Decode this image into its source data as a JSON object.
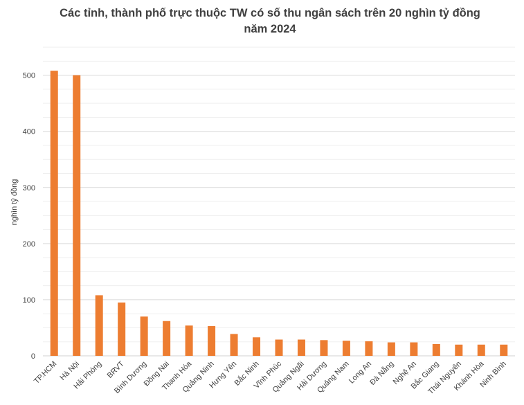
{
  "chart_data": {
    "type": "bar",
    "title_lines": [
      "Các tỉnh, thành phố trực thuộc TW có số thu ngân sách trên 20 nghìn tỷ đồng",
      "năm 2024"
    ],
    "xlabel": "",
    "ylabel": "nghìn tỷ đồng",
    "ylim": [
      0,
      560
    ],
    "yticks": [
      0,
      100,
      200,
      300,
      400,
      500
    ],
    "grid": true,
    "legend": "none",
    "bar_color": "#ED7D31",
    "categories": [
      "TP.HCM",
      "Hà Nội",
      "Hải Phòng",
      "BRVT",
      "Bình Dương",
      "Đồng Nai",
      "Thanh Hóa",
      "Quảng Ninh",
      "Hưng Yên",
      "Bắc Ninh",
      "Vĩnh Phúc",
      "Quảng Ngãi",
      "Hải Dương",
      "Quảng Nam",
      "Long An",
      "Đà Nẵng",
      "Nghệ An",
      "Bắc Giang",
      "Thái Nguyên",
      "Khánh Hòa",
      "Ninh Bình"
    ],
    "values": [
      508,
      500,
      108,
      95,
      70,
      62,
      54,
      53,
      39,
      33,
      29,
      29,
      28,
      27,
      26,
      24,
      24,
      21,
      20,
      20,
      20
    ]
  }
}
